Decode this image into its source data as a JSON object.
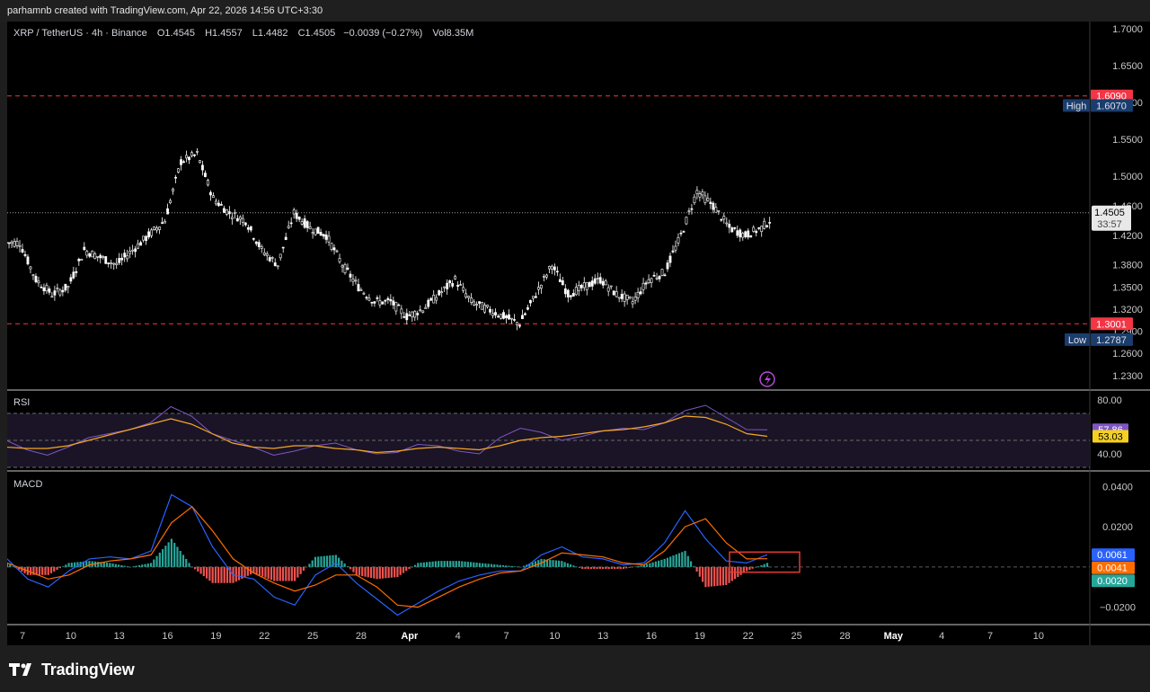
{
  "header": {
    "credit": "parhamnb created with TradingView.com, Apr 22, 2026 14:56 UTC+3:30"
  },
  "legend": {
    "symbol": "XRP / TetherUS · 4h · Binance",
    "open": "O1.4545",
    "high": "H1.4557",
    "low": "L1.4482",
    "close": "C1.4505",
    "change": "−0.0039 (−0.27%)",
    "volume": "Vol8.35M"
  },
  "branding": {
    "name": "TradingView"
  },
  "colors": {
    "background": "#000000",
    "candle": "#ffffff",
    "level_red": "#f23645",
    "high_low_label": "#1a3d6e",
    "rsi_line": "#7e57c2",
    "rsi_ma": "#f5a623",
    "macd_line": "#2962ff",
    "signal_line": "#ff6d00",
    "hist_pos": "#26a69a",
    "hist_neg": "#ef5350",
    "highlight_box": "#e53935"
  },
  "chart_data": [
    {
      "type": "candlestick",
      "title": "XRP / TetherUS · 4h · Binance",
      "ylim": [
        1.22,
        1.7
      ],
      "y_ticks": [
        1.7,
        1.65,
        1.6,
        1.55,
        1.5,
        1.46,
        1.42,
        1.38,
        1.35,
        1.32,
        1.29,
        1.26,
        1.23
      ],
      "y_tick_labels": [
        "1.7000",
        "1.6500",
        "1.6000",
        "1.5500",
        "1.5000",
        "1.4600",
        "1.4200",
        "1.3800",
        "1.3500",
        "1.3200",
        "1.2900",
        "1.2600",
        "1.2300"
      ],
      "x_ticks": [
        "7",
        "10",
        "13",
        "16",
        "19",
        "22",
        "25",
        "28",
        "Apr",
        "4",
        "7",
        "10",
        "13",
        "16",
        "19",
        "22",
        "25",
        "28",
        "May",
        "4",
        "7",
        "10"
      ],
      "close_series": {
        "x": [
          "Mar 6",
          "Mar 7",
          "Mar 8",
          "Mar 9",
          "Mar 10",
          "Mar 11",
          "Mar 12",
          "Mar 13",
          "Mar 14",
          "Mar 15",
          "Mar 16",
          "Mar 17",
          "Mar 18",
          "Mar 19",
          "Mar 20",
          "Mar 21",
          "Mar 22",
          "Mar 23",
          "Mar 24",
          "Mar 25",
          "Mar 26",
          "Mar 27",
          "Mar 28",
          "Mar 29",
          "Mar 30",
          "Mar 31",
          "Apr 1",
          "Apr 2",
          "Apr 3",
          "Apr 4",
          "Apr 5",
          "Apr 6",
          "Apr 7",
          "Apr 8",
          "Apr 9",
          "Apr 10",
          "Apr 11",
          "Apr 12",
          "Apr 13",
          "Apr 14",
          "Apr 15",
          "Apr 16",
          "Apr 17",
          "Apr 18",
          "Apr 19",
          "Apr 20",
          "Apr 21",
          "Apr 22"
        ],
        "values": [
          1.41,
          1.36,
          1.34,
          1.35,
          1.4,
          1.39,
          1.38,
          1.4,
          1.42,
          1.44,
          1.52,
          1.53,
          1.47,
          1.45,
          1.44,
          1.4,
          1.38,
          1.45,
          1.43,
          1.42,
          1.38,
          1.35,
          1.33,
          1.33,
          1.31,
          1.32,
          1.34,
          1.36,
          1.33,
          1.32,
          1.31,
          1.3,
          1.34,
          1.38,
          1.34,
          1.35,
          1.36,
          1.34,
          1.33,
          1.36,
          1.37,
          1.42,
          1.48,
          1.46,
          1.43,
          1.42,
          1.43,
          1.4505
        ]
      },
      "levels": [
        {
          "value": 1.609,
          "label": "1.6090"
        },
        {
          "value": 1.3001,
          "label": "1.3001"
        }
      ],
      "high": {
        "label": "High",
        "value": "1.6070"
      },
      "low": {
        "label": "Low",
        "value": "1.2787"
      },
      "last_price": {
        "value": "1.4505",
        "countdown": "33:57"
      }
    },
    {
      "type": "line",
      "title": "RSI",
      "ylim": [
        30,
        82
      ],
      "y_tick_labels": [
        "80.00",
        "40.00"
      ],
      "bands": [
        70,
        50,
        30
      ],
      "series": [
        {
          "values": [
            50,
            43,
            39,
            45,
            52,
            55,
            58,
            63,
            75,
            68,
            55,
            50,
            45,
            39,
            42,
            46,
            48,
            43,
            40,
            41,
            47,
            46,
            42,
            40,
            52,
            59,
            56,
            50,
            53,
            57,
            59,
            58,
            63,
            72,
            76,
            67,
            58,
            57.86
          ]
        },
        {
          "values": [
            45,
            44,
            44,
            46,
            50,
            54,
            58,
            62,
            66,
            62,
            55,
            48,
            45,
            44,
            46,
            46,
            44,
            43,
            41,
            42,
            44,
            45,
            44,
            43,
            46,
            50,
            52,
            53,
            55,
            57,
            58,
            60,
            63,
            68,
            67,
            62,
            55,
            53.03
          ]
        }
      ],
      "value_labels": [
        "57.86",
        "53.03"
      ]
    },
    {
      "type": "line",
      "title": "MACD",
      "ylim": [
        -0.026,
        0.046
      ],
      "y_tick_labels": [
        "0.0400",
        "0.0200",
        "−0.0200"
      ],
      "series": [
        {
          "values": [
            0.004,
            -0.006,
            -0.01,
            -0.002,
            0.004,
            0.005,
            0.004,
            0.008,
            0.036,
            0.03,
            0.01,
            -0.004,
            -0.006,
            -0.015,
            -0.019,
            -0.004,
            0.002,
            -0.008,
            -0.016,
            -0.024,
            -0.018,
            -0.012,
            -0.007,
            -0.004,
            -0.002,
            -0.002,
            0.006,
            0.01,
            0.005,
            0.004,
            0.001,
            0.002,
            0.012,
            0.028,
            0.014,
            0.003,
            0.002,
            0.0061
          ]
        },
        {
          "values": [
            0.002,
            -0.002,
            -0.006,
            -0.004,
            0.001,
            0.003,
            0.004,
            0.006,
            0.022,
            0.03,
            0.018,
            0.004,
            -0.003,
            -0.008,
            -0.012,
            -0.009,
            -0.004,
            -0.004,
            -0.01,
            -0.019,
            -0.02,
            -0.015,
            -0.01,
            -0.006,
            -0.003,
            -0.002,
            0.002,
            0.007,
            0.006,
            0.005,
            0.002,
            0.001,
            0.008,
            0.02,
            0.024,
            0.012,
            0.004,
            0.0041
          ]
        }
      ],
      "histogram": [
        0.002,
        -0.004,
        -0.004,
        0.002,
        0.003,
        0.002,
        0.0,
        0.002,
        0.014,
        0.0,
        -0.008,
        -0.008,
        -0.003,
        -0.007,
        -0.007,
        0.005,
        0.006,
        -0.004,
        -0.006,
        -0.005,
        0.002,
        0.003,
        0.003,
        0.002,
        0.001,
        0.0,
        0.004,
        0.003,
        -0.001,
        -0.001,
        -0.001,
        0.001,
        0.004,
        0.008,
        -0.01,
        -0.009,
        -0.002,
        0.002
      ],
      "value_labels": [
        "0.0061",
        "0.0041",
        "0.0020"
      ]
    }
  ]
}
